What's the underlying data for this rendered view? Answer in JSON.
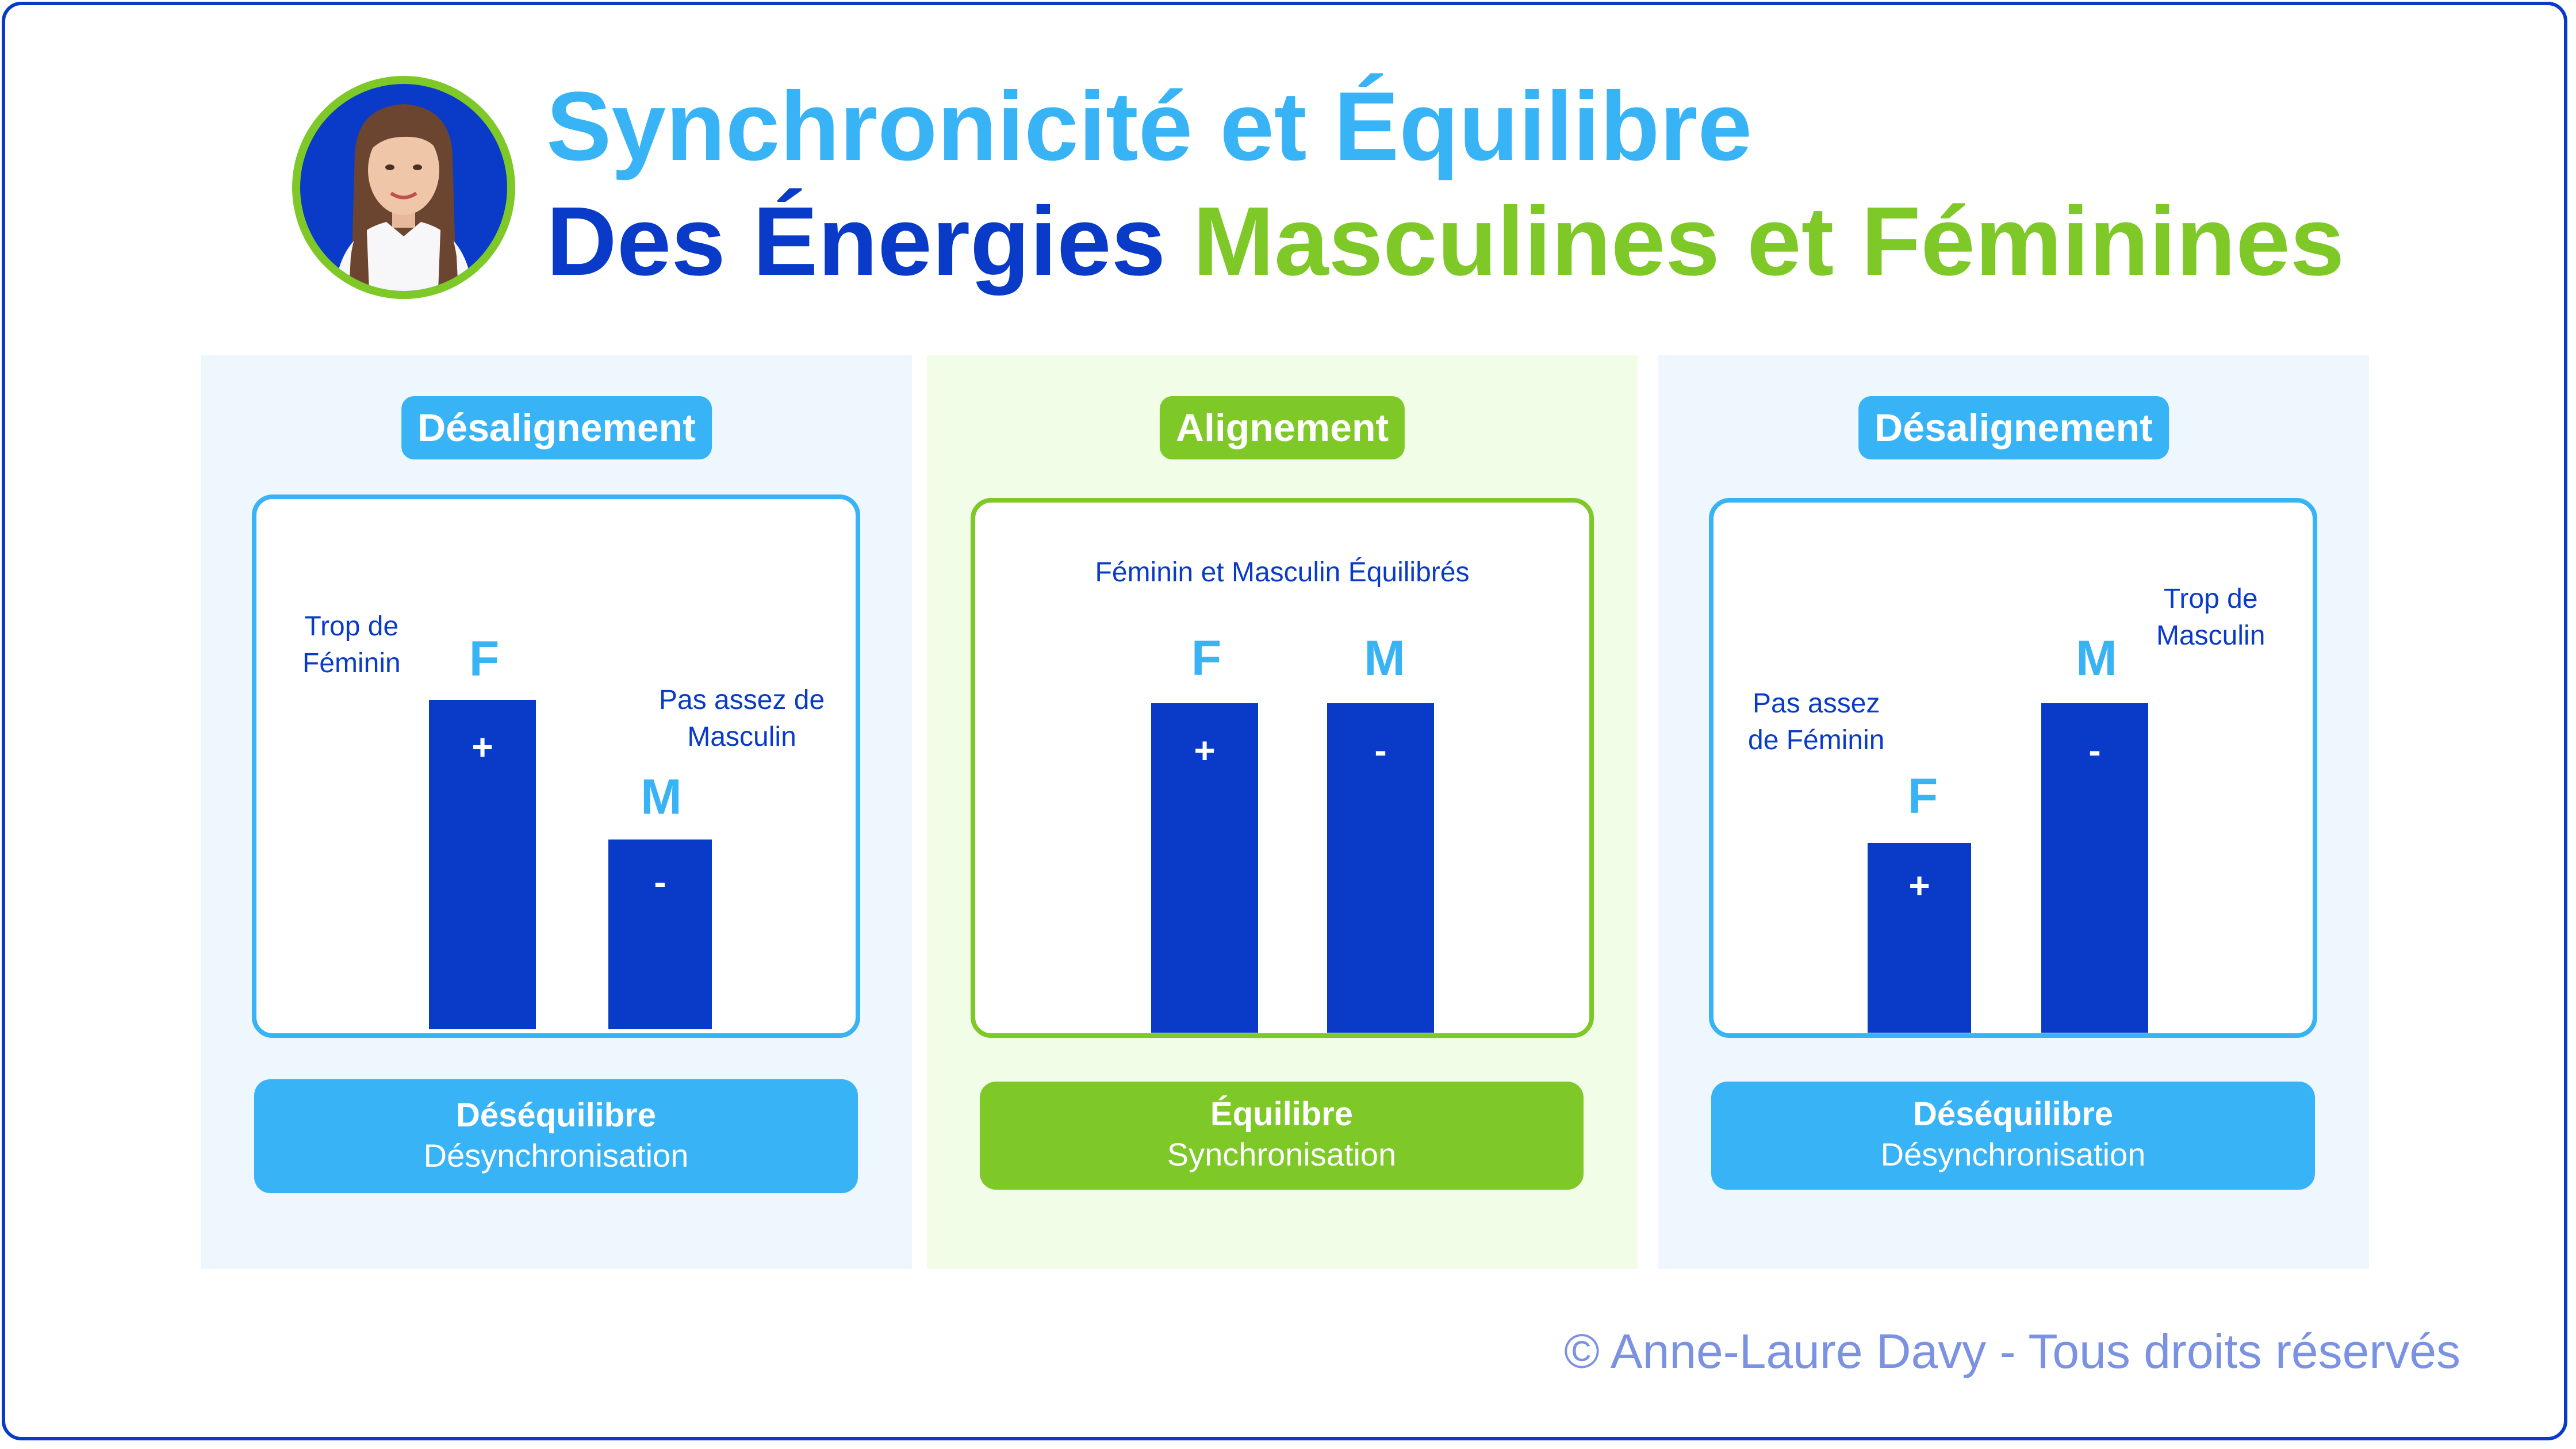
{
  "header": {
    "title_line1": "Synchronicité et Équilibre",
    "title_line2_part1": "Des Énergies ",
    "title_line2_part2": "Masculines et Féminines"
  },
  "panels": [
    {
      "badge": "Désalignement",
      "bar_labels": [
        "F",
        "M"
      ],
      "bar_signs": [
        "+",
        "-"
      ],
      "bar_levels": [
        0.73,
        0.42
      ],
      "note_left": "Trop de\nFéminin",
      "note_right": "Pas assez de\nMasculin",
      "result_title": "Déséquilibre",
      "result_sub": "Désynchronisation"
    },
    {
      "badge": "Alignement",
      "caption": "Féminin et Masculin Équilibrés",
      "bar_labels": [
        "F",
        "M"
      ],
      "bar_signs": [
        "+",
        "-"
      ],
      "bar_levels": [
        0.73,
        0.73
      ],
      "result_title": "Équilibre",
      "result_sub": "Synchronisation"
    },
    {
      "badge": "Désalignement",
      "bar_labels": [
        "F",
        "M"
      ],
      "bar_signs": [
        "+",
        "-"
      ],
      "bar_levels": [
        0.42,
        0.73
      ],
      "note_left": "Pas assez\nde Féminin",
      "note_right": "Trop de\nMasculin",
      "result_title": "Déséquilibre",
      "result_sub": "Désynchronisation"
    }
  ],
  "footer": "© Anne-Laure Davy - Tous droits réservés",
  "colors": {
    "dark_blue": "#0a3bc8",
    "light_blue": "#38b3f5",
    "green": "#7ec827",
    "footer_text": "#7b92e2"
  }
}
